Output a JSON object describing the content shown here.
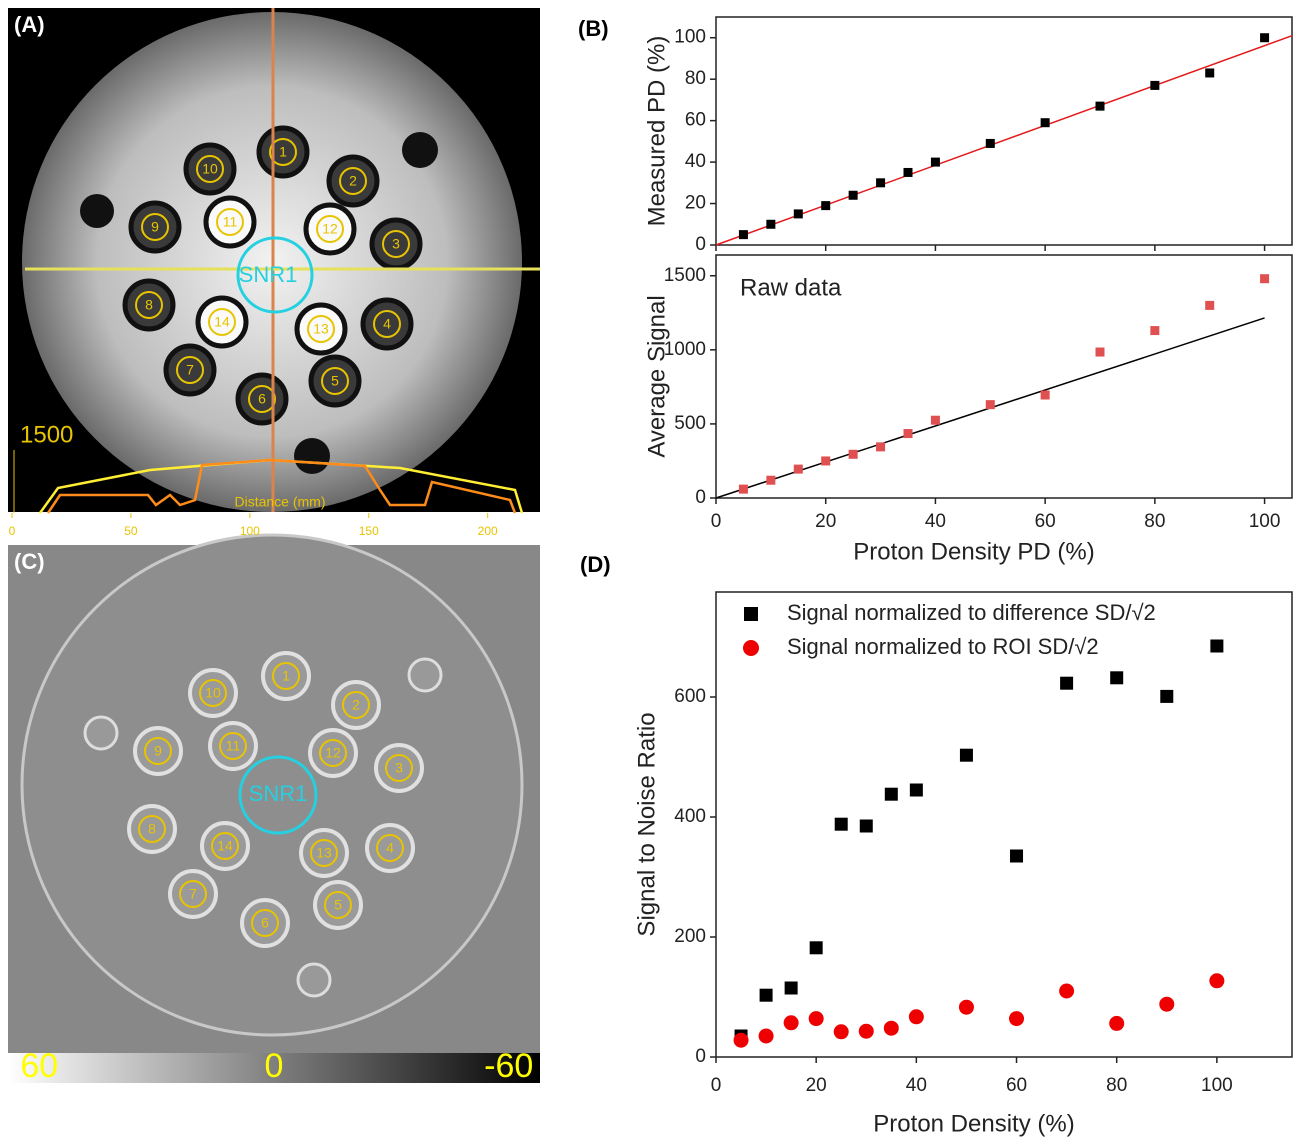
{
  "panels": {
    "a": "(A)",
    "b": "(B)",
    "c": "(C)",
    "d": "(D)"
  },
  "image_a": {
    "roi_labels": [
      "1",
      "2",
      "3",
      "4",
      "5",
      "6",
      "7",
      "8",
      "9",
      "10",
      "11",
      "12",
      "13",
      "14"
    ],
    "snr_label": "SNR1",
    "profile": {
      "max_label": "1500",
      "x_label": "Distance (mm)",
      "xlim": [
        0,
        222
      ],
      "xticks": [
        0,
        50,
        100,
        150,
        200
      ]
    }
  },
  "image_c": {
    "roi_labels": [
      "1",
      "2",
      "3",
      "4",
      "5",
      "6",
      "7",
      "8",
      "9",
      "10",
      "11",
      "12",
      "13",
      "14"
    ],
    "snr_label": "SNR1",
    "colorbar": {
      "lim": [
        68,
        -68
      ],
      "ticks": [
        60,
        0,
        -60
      ]
    }
  },
  "chart_data": [
    {
      "type": "scatter",
      "ylabel": "Measured PD (%)",
      "x": [
        5,
        10,
        15,
        20,
        25,
        30,
        35,
        40,
        50,
        60,
        70,
        80,
        90,
        100
      ],
      "series": [
        {
          "color": "#000000",
          "marker": "square",
          "values": [
            5,
            10,
            15,
            19,
            24,
            30,
            35,
            40,
            49,
            59,
            67,
            77,
            83,
            100
          ]
        }
      ],
      "fit": {
        "color": "#e41a1c",
        "x": [
          0,
          105
        ],
        "y": [
          0,
          101
        ]
      },
      "xlim": [
        0,
        105
      ],
      "ylim": [
        0,
        110
      ],
      "yticks": [
        0,
        20,
        40,
        60,
        80,
        100
      ]
    },
    {
      "type": "scatter",
      "ylabel": "Average Signal",
      "xlabel": "Proton Density PD (%)",
      "annotation": "Raw data",
      "x": [
        5,
        10,
        15,
        20,
        25,
        30,
        35,
        40,
        50,
        60,
        70,
        80,
        90,
        100
      ],
      "series": [
        {
          "color": "#e05050",
          "marker": "square",
          "values": [
            60,
            120,
            195,
            250,
            295,
            345,
            435,
            525,
            630,
            695,
            985,
            1130,
            1300,
            1480
          ]
        }
      ],
      "fit": {
        "color": "#000000",
        "x": [
          0,
          100
        ],
        "y": [
          0,
          1215
        ]
      },
      "xlim": [
        0,
        105
      ],
      "ylim": [
        0,
        1640
      ],
      "xticks": [
        0,
        20,
        40,
        60,
        80,
        100
      ],
      "yticks": [
        0,
        500,
        1000,
        1500
      ]
    },
    {
      "type": "scatter",
      "ylabel": "Signal to Noise Ratio",
      "xlabel": "Proton Density (%)",
      "legend": "upper left",
      "x": [
        5,
        10,
        15,
        20,
        25,
        30,
        35,
        40,
        50,
        60,
        70,
        80,
        90,
        100
      ],
      "series": [
        {
          "name": "Signal normalized to difference SD/√2",
          "color": "#000000",
          "marker": "square",
          "values": [
            35,
            103,
            115,
            182,
            388,
            385,
            438,
            445,
            503,
            335,
            623,
            632,
            601,
            685
          ]
        },
        {
          "name": "Signal normalized to ROI SD/√2",
          "color": "#ee0000",
          "marker": "circle",
          "values": [
            28,
            35,
            57,
            64,
            42,
            43,
            48,
            67,
            83,
            64,
            110,
            56,
            88,
            127
          ]
        }
      ],
      "xlim": [
        0,
        115
      ],
      "ylim": [
        0,
        775
      ],
      "xticks": [
        0,
        20,
        40,
        60,
        80,
        100
      ],
      "yticks": [
        0,
        200,
        400,
        600
      ]
    }
  ]
}
